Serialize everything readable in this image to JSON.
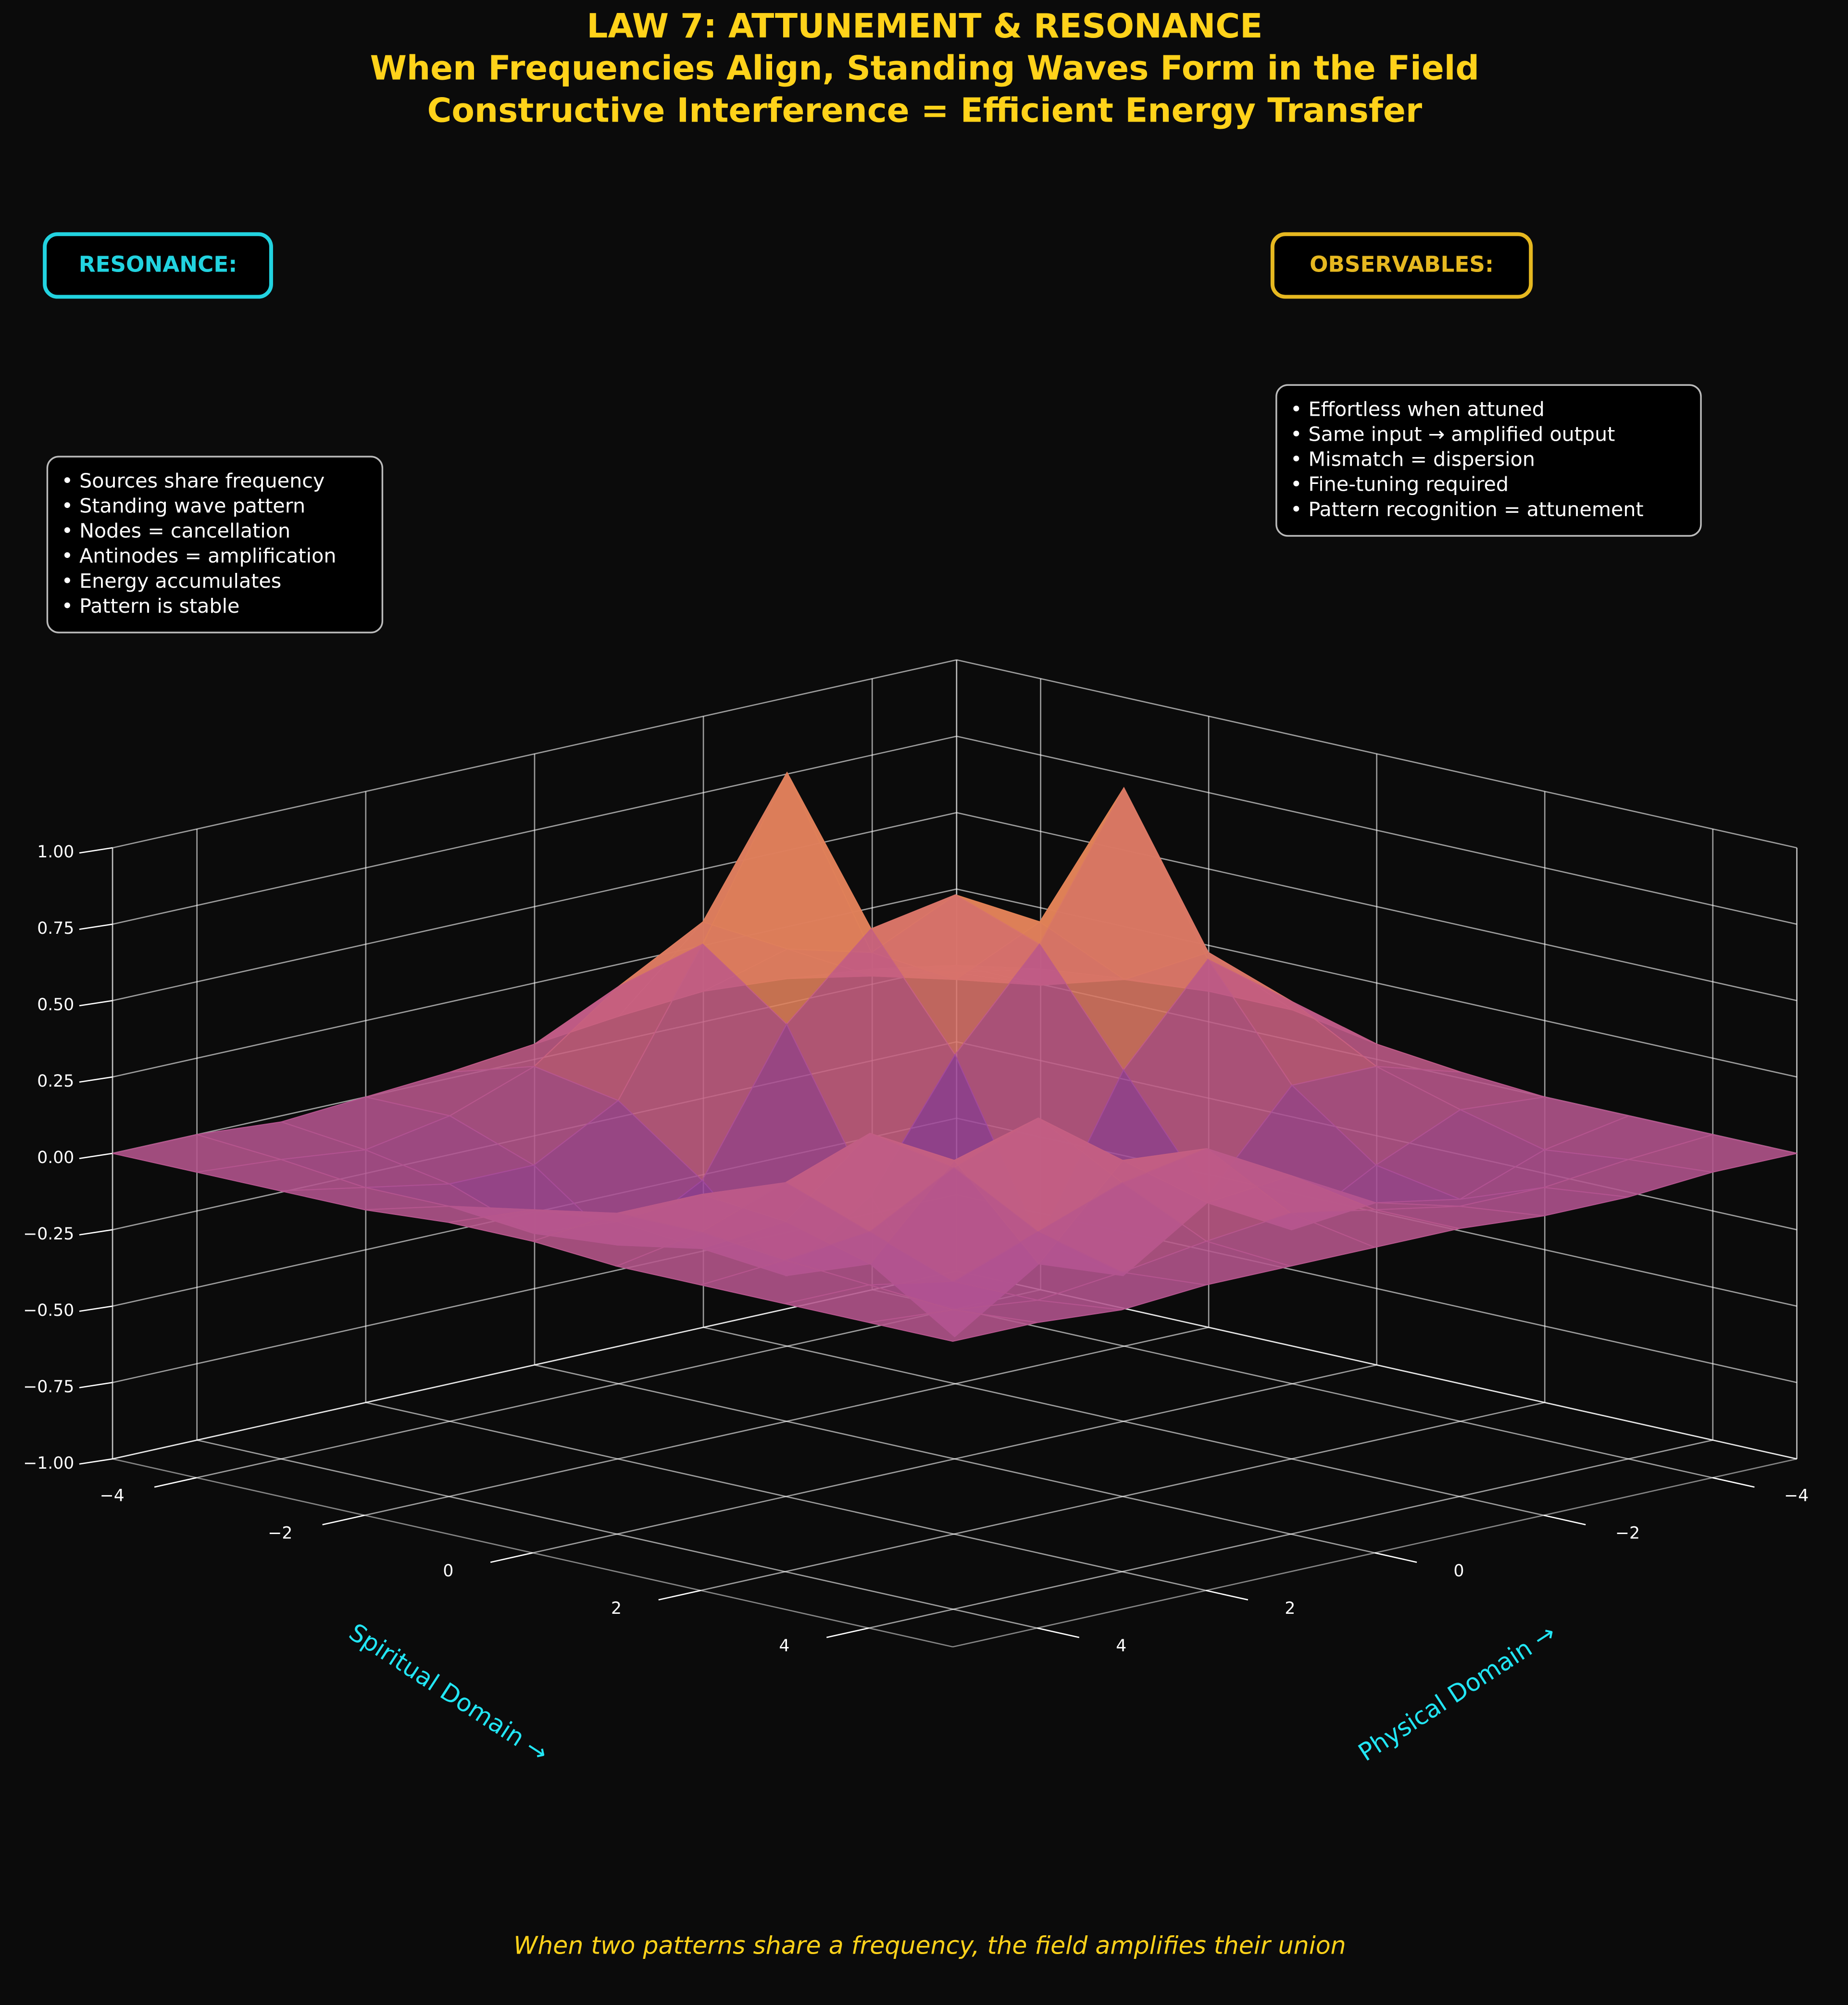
{
  "chart_data": {
    "type": "surface",
    "title": [
      "LAW 7: ATTUNEMENT & RESONANCE",
      "When Frequencies Align, Standing Waves Form in the Field",
      "Constructive Interference = Efficient Energy Transfer"
    ],
    "xlabel": "Spiritual Domain →",
    "ylabel": "Physical Domain →",
    "x": [
      -5,
      -4,
      -3,
      -2,
      -1,
      0,
      1,
      2,
      3,
      4,
      5
    ],
    "y": [
      -5,
      -4,
      -3,
      -2,
      -1,
      0,
      1,
      2,
      3,
      4,
      5
    ],
    "z": [
      [
        0,
        0.05,
        0.08,
        0.1,
        0.08,
        0.05,
        0.02,
        0,
        -0.02,
        0,
        0
      ],
      [
        0.05,
        0.1,
        0.15,
        0.3,
        0.45,
        0.3,
        0.1,
        0,
        -0.05,
        -0.02,
        0
      ],
      [
        0.08,
        0.12,
        0.2,
        0.35,
        1.0,
        0.5,
        0.05,
        -0.1,
        -0.1,
        -0.05,
        0
      ],
      [
        0.1,
        0.2,
        0.45,
        0.6,
        0.55,
        0.3,
        -0.15,
        -0.3,
        -0.2,
        -0.05,
        0
      ],
      [
        0.1,
        0.35,
        0.95,
        0.5,
        0.2,
        -0.2,
        -0.4,
        -0.25,
        -0.1,
        0,
        0.02
      ],
      [
        0.05,
        0.25,
        0.45,
        0.15,
        -0.35,
        -0.6,
        -0.3,
        -0.1,
        0.05,
        0.05,
        0.02
      ],
      [
        0.02,
        0.1,
        0.1,
        -0.2,
        -0.4,
        -0.3,
        0.1,
        0.25,
        0.15,
        0.05,
        0
      ],
      [
        0,
        0.02,
        -0.1,
        -0.25,
        -0.1,
        0.1,
        0.3,
        0.2,
        0.05,
        0.02,
        0
      ],
      [
        0,
        -0.05,
        -0.15,
        -0.1,
        0.05,
        0.2,
        0.15,
        0.05,
        -0.05,
        0,
        0
      ],
      [
        0,
        -0.02,
        -0.05,
        -0.05,
        0,
        0.05,
        0.02,
        -0.02,
        -0.05,
        -0.02,
        0
      ],
      [
        0,
        0,
        -0.02,
        -0.02,
        0,
        0,
        0,
        0,
        -0.02,
        0,
        0
      ]
    ],
    "colormap": [
      "#5a1e8c",
      "#9a44a0",
      "#d0667a",
      "#f7a826"
    ],
    "xlim": [
      -5,
      5
    ],
    "ylim": [
      -5,
      5
    ],
    "zlim": [
      -1,
      1
    ],
    "xticks": [
      {
        "value": -4,
        "label": "−4"
      },
      {
        "value": -2,
        "label": "−2"
      },
      0,
      2,
      4
    ],
    "yticks": [
      {
        "value": -4,
        "label": "−4"
      },
      {
        "value": -2,
        "label": "−2"
      },
      0,
      2,
      4
    ],
    "zticks": [
      {
        "value": -1,
        "label": "−1.00"
      },
      {
        "value": -0.75,
        "label": "−0.75"
      },
      {
        "value": -0.5,
        "label": "−0.50"
      },
      {
        "value": -0.25,
        "label": "−0.25"
      },
      {
        "value": 0,
        "label": "0.00"
      },
      0.25,
      {
        "value": 0.5,
        "label": "0.50"
      },
      0.75,
      {
        "value": 1,
        "label": "1.00"
      }
    ],
    "grid": true,
    "annotations": [
      {
        "title": "RESONANCE:",
        "color": "#22d3e0",
        "items": [
          "• Sources share frequency",
          "• Standing wave pattern",
          "• Nodes = cancellation",
          "• Antinodes = amplification",
          "• Energy accumulates",
          "• Pattern is stable"
        ]
      },
      {
        "title": "OBSERVABLES:",
        "color": "#e6b820",
        "items": [
          "• Effortless when attuned",
          "• Same input → amplified output",
          "• Mismatch = dispersion",
          "• Fine-tuning required",
          "• Pattern recognition = attunement"
        ]
      }
    ],
    "caption": "When two patterns share a frequency, the field amplifies their union"
  }
}
